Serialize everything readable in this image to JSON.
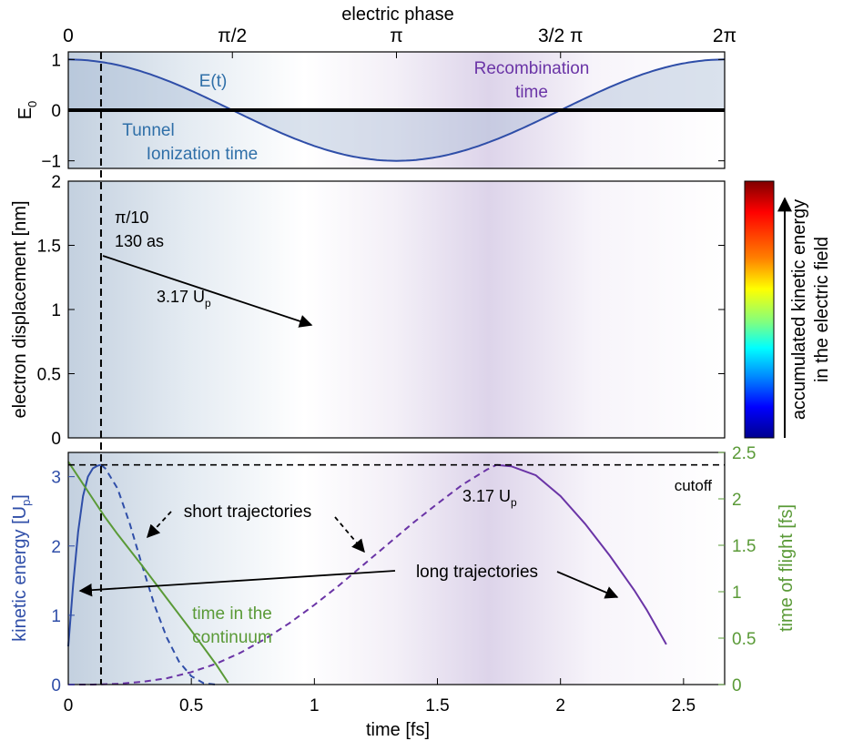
{
  "chart_data": [
    {
      "type": "line",
      "title": "electric phase",
      "xlabel": "",
      "ylabel": "E0",
      "ylabel_sub": "0",
      "xlim": [
        0,
        2.667
      ],
      "ylim": [
        -1.15,
        1.15
      ],
      "yticks": [
        "1",
        "0",
        "−1"
      ],
      "top_axis_ticks": [
        {
          "label": "0",
          "phase": 0
        },
        {
          "label": "π/2",
          "phase": 0.5
        },
        {
          "label": "π",
          "phase": 1.0
        },
        {
          "label": "3/2 π",
          "phase": 1.5
        },
        {
          "label": "2π",
          "phase": 2.0
        }
      ],
      "series": [
        {
          "name": "E(t)",
          "function": "cos(2π·t/2.667)",
          "color": "#2f4ea8"
        },
        {
          "function": "zero line",
          "color": "#000000"
        }
      ],
      "annotations": {
        "field_label": "E(t)",
        "tunnel_line1": "Tunnel",
        "tunnel_line2": "Ionization time",
        "recomb_line1": "Recombination",
        "recomb_line2": "time"
      },
      "marker_line_t": 0.133
    },
    {
      "type": "line",
      "xlabel": "",
      "ylabel": "electron displacement [nm]",
      "xlim": [
        0,
        2.667
      ],
      "ylim": [
        0,
        2.0
      ],
      "yticks": [
        "0",
        "0.5",
        "1",
        "1.5",
        "2"
      ],
      "trajectories": {
        "count": 44,
        "birth_t_first": 0.0,
        "birth_t_last": 0.6,
        "max_displacement_nm": 1.74,
        "highlighted_birth_t": 0.133,
        "highlighted_color": "#7a0b0b"
      },
      "annotations": {
        "phase_label": "π/10",
        "time_label": "130 as",
        "energy_label": "3.17 U",
        "energy_sub": "p"
      },
      "colorbar": {
        "label_line1": "accumulated kinetic energy",
        "label_line2": "in the electric field",
        "colors": [
          "#7f0000",
          "#ff0000",
          "#ff7f00",
          "#ffff00",
          "#7fff7f",
          "#00ffff",
          "#007fff",
          "#0000ff",
          "#00008f"
        ]
      }
    },
    {
      "type": "line",
      "xlabel": "time [fs]",
      "ylabel": "kinetic  energy  [U",
      "ylabel_sub": "p",
      "ylabel_close": "]",
      "y2label": "time of flight [fs]",
      "xlim": [
        0,
        2.667
      ],
      "ylim": [
        0,
        3.35
      ],
      "y2lim": [
        0,
        2.5
      ],
      "xticks": [
        "0",
        "0.5",
        "1",
        "1.5",
        "2",
        "2.5"
      ],
      "yticks": [
        "0",
        "1",
        "2",
        "3"
      ],
      "y2ticks": [
        "0",
        "0.5",
        "1",
        "1.5",
        "2",
        "2.5"
      ],
      "series": [
        {
          "name": "kinetic energy (short, solid)",
          "color": "#2f4ea8",
          "x": [
            0.0,
            0.02,
            0.04,
            0.06,
            0.08,
            0.1,
            0.12,
            0.133
          ],
          "y": [
            0.55,
            1.45,
            2.2,
            2.72,
            3.0,
            3.12,
            3.16,
            3.17
          ]
        },
        {
          "name": "kinetic energy (short, dashed)",
          "color": "#2f4ea8",
          "x": [
            0.133,
            0.15,
            0.2,
            0.25,
            0.3,
            0.35,
            0.4,
            0.45,
            0.5,
            0.55,
            0.6
          ],
          "y": [
            3.17,
            3.12,
            2.83,
            2.32,
            1.72,
            1.15,
            0.68,
            0.33,
            0.12,
            0.02,
            0.0
          ]
        },
        {
          "name": "kinetic energy (long, dashed)",
          "color": "#6a34a6",
          "x": [
            0.0,
            0.1,
            0.2,
            0.3,
            0.4,
            0.5,
            0.6,
            0.7,
            0.8,
            0.9,
            1.0,
            1.1,
            1.2,
            1.3,
            1.4,
            1.5,
            1.6,
            1.7,
            1.74
          ],
          "y": [
            0.0,
            0.0,
            0.01,
            0.04,
            0.09,
            0.18,
            0.3,
            0.46,
            0.66,
            0.89,
            1.15,
            1.43,
            1.73,
            2.03,
            2.33,
            2.61,
            2.88,
            3.1,
            3.17
          ]
        },
        {
          "name": "kinetic energy (long, solid)",
          "color": "#6a34a6",
          "x": [
            1.74,
            1.8,
            1.9,
            2.0,
            2.1,
            2.2,
            2.3,
            2.35,
            2.43
          ],
          "y": [
            3.17,
            3.15,
            3.02,
            2.72,
            2.32,
            1.86,
            1.36,
            1.08,
            0.58
          ]
        },
        {
          "name": "time in the continuum",
          "color": "#5a9a37",
          "x": [
            0.0,
            0.05,
            0.1,
            0.15,
            0.2,
            0.3,
            0.4,
            0.5,
            0.6,
            0.65
          ],
          "y2": [
            2.4,
            2.2,
            2.0,
            1.8,
            1.62,
            1.28,
            0.93,
            0.58,
            0.22,
            0.02
          ]
        }
      ],
      "cutoff_value": 3.17,
      "annotations": {
        "cutoff": "cutoff",
        "energy_label": "3.17 U",
        "energy_sub": "p",
        "short": "short trajectories",
        "long": "long trajectories",
        "continuum_line1": "time in the",
        "continuum_line2": "continuum"
      }
    }
  ]
}
